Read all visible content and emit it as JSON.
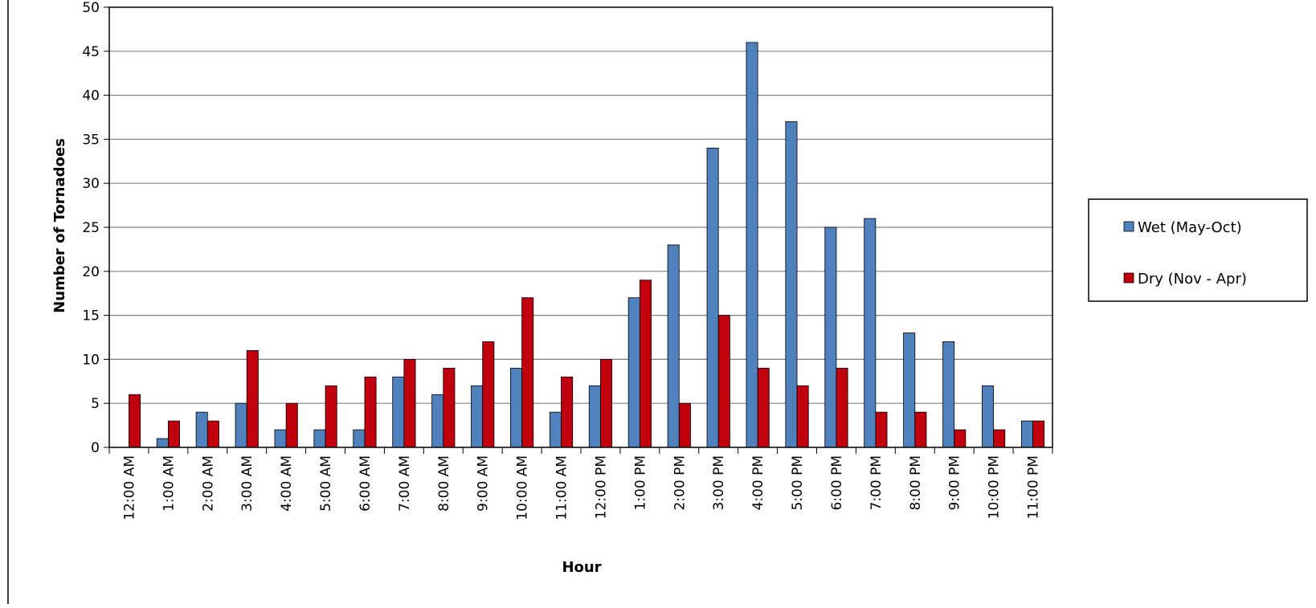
{
  "chart_data": {
    "type": "bar",
    "title": "",
    "xlabel": "Hour",
    "ylabel": "Number of Tornadoes",
    "ylim": [
      0,
      50
    ],
    "yticks": [
      0,
      5,
      10,
      15,
      20,
      25,
      30,
      35,
      40,
      45,
      50
    ],
    "grid": true,
    "legend_position": "right",
    "categories": [
      "12:00 AM",
      "1:00 AM",
      "2:00 AM",
      "3:00 AM",
      "4:00 AM",
      "5:00 AM",
      "6:00 AM",
      "7:00 AM",
      "8:00 AM",
      "9:00 AM",
      "10:00 AM",
      "11:00 AM",
      "12:00 PM",
      "1:00 PM",
      "2:00 PM",
      "3:00 PM",
      "4:00 PM",
      "5:00 PM",
      "6:00 PM",
      "7:00 PM",
      "8:00 PM",
      "9:00 PM",
      "10:00 PM",
      "11:00 PM"
    ],
    "series": [
      {
        "name": "Wet (May-Oct)",
        "color": "#4f81bd",
        "values": [
          0,
          1,
          4,
          5,
          2,
          2,
          2,
          8,
          6,
          7,
          9,
          4,
          7,
          17,
          23,
          34,
          46,
          37,
          25,
          26,
          13,
          12,
          7,
          3
        ]
      },
      {
        "name": "Dry (Nov - Apr)",
        "color": "#c0000c",
        "values": [
          6,
          3,
          3,
          11,
          5,
          7,
          8,
          10,
          9,
          12,
          17,
          8,
          10,
          19,
          5,
          15,
          9,
          7,
          9,
          4,
          4,
          2,
          2,
          3
        ]
      }
    ]
  }
}
